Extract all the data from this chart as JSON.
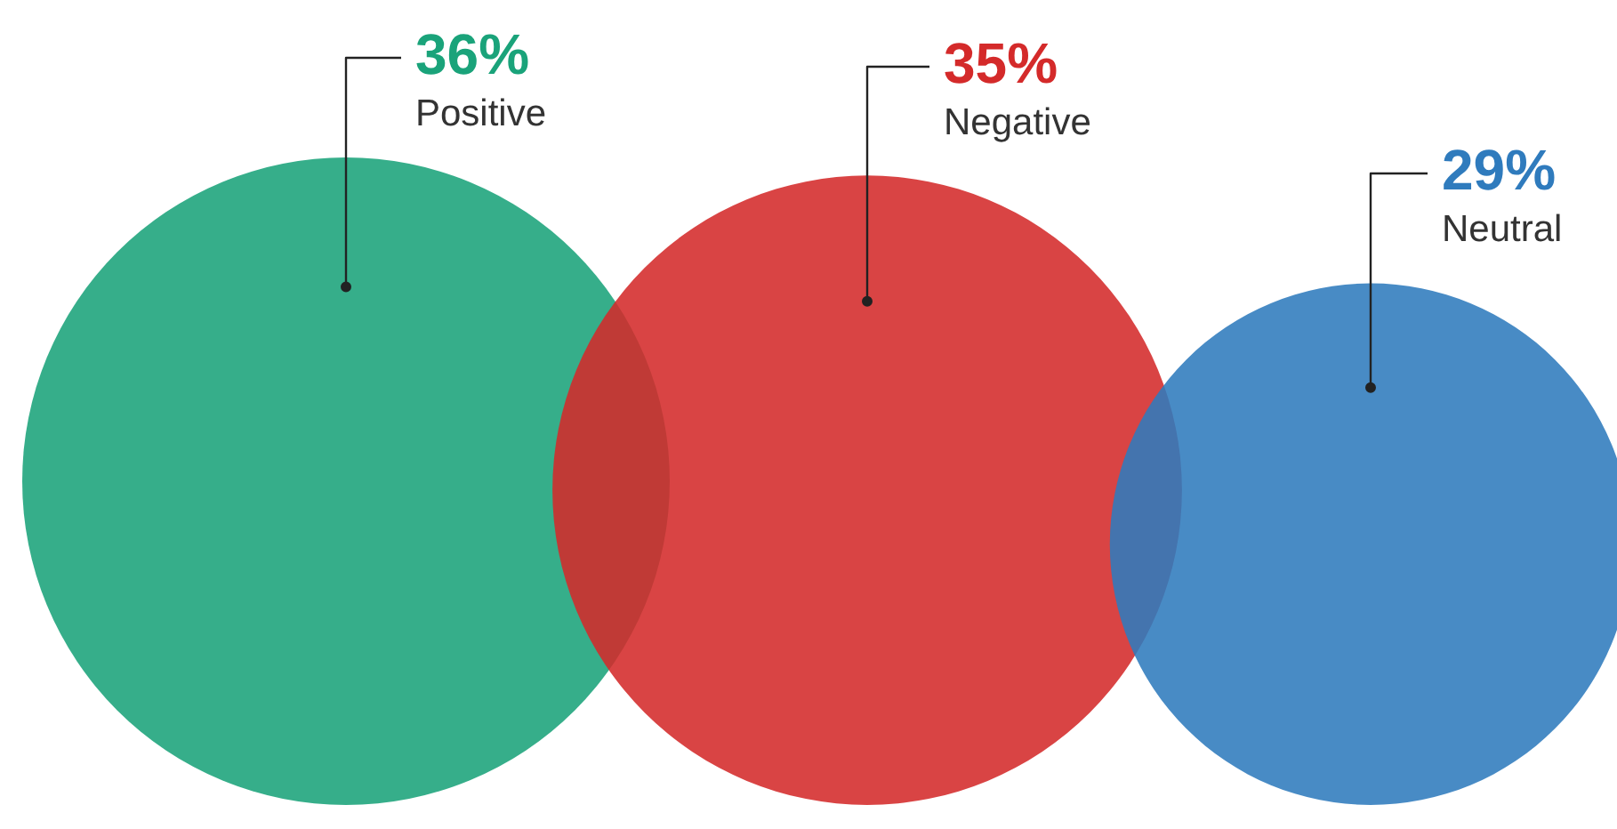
{
  "chart_data": {
    "type": "other",
    "categories": [
      "Positive",
      "Negative",
      "Neutral"
    ],
    "values": [
      36,
      35,
      29
    ],
    "value_labels": [
      "36%",
      "35%",
      "29%"
    ],
    "colors": [
      "#1aa37a",
      "#d42a2a",
      "#2f7bbd"
    ]
  }
}
